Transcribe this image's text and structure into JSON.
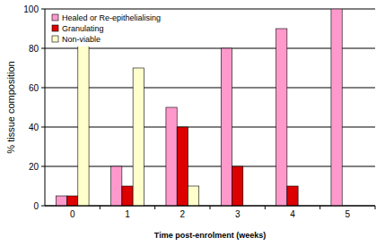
{
  "chart_data": {
    "type": "bar",
    "x_label": "Time post-enrolment (weeks)",
    "y_label": "% tissue composition",
    "categories": [
      "0",
      "1",
      "2",
      "3",
      "4",
      "5"
    ],
    "series": [
      {
        "name": "Healed or Re-epithelialising",
        "color": "#ff99cc",
        "values": [
          5,
          20,
          50,
          80,
          90,
          100
        ]
      },
      {
        "name": "Granulating",
        "color": "#dd0000",
        "values": [
          5,
          10,
          40,
          20,
          10,
          0
        ]
      },
      {
        "name": "Non-viable",
        "color": "#ffffcc",
        "values": [
          90,
          70,
          10,
          0,
          0,
          0
        ]
      }
    ],
    "ylim": [
      0,
      100
    ],
    "yticks": [
      0,
      20,
      40,
      60,
      80,
      100
    ],
    "grid": true,
    "legend": "top-left"
  }
}
